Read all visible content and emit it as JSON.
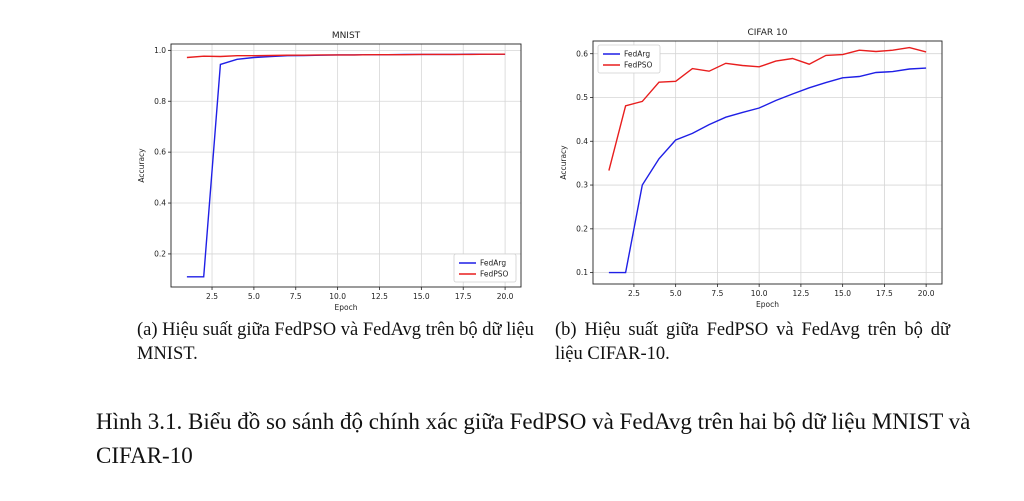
{
  "figure_caption": "Hình 3.1. Biểu đồ so sánh độ chính xác giữa FedPSO và FedAvg trên hai bộ dữ liệu MNIST và CIFAR-10",
  "subcaptions": {
    "a": "(a) Hiệu suất giữa FedPSO và FedAvg trên bộ dữ liệu MNIST.",
    "b": "(b) Hiệu suất giữa FedPSO và FedAvg trên bộ dữ liệu CIFAR-10."
  },
  "colors": {
    "fedavg": "#1f1fe6",
    "fedpso": "#e81e1e",
    "grid": "#d6d6d6"
  },
  "chart_data": [
    {
      "type": "line",
      "title": "MNIST",
      "xlabel": "Epoch",
      "ylabel": "Accuracy",
      "xlim": [
        0.05,
        20.95
      ],
      "ylim": [
        0.07,
        1.025
      ],
      "xticks": [
        2.5,
        5.0,
        7.5,
        10.0,
        12.5,
        15.0,
        17.5,
        20.0
      ],
      "xtick_labels": [
        "2.5",
        "5.0",
        "7.5",
        "10.0",
        "12.5",
        "15.0",
        "17.5",
        "20.0"
      ],
      "yticks": [
        0.2,
        0.4,
        0.6,
        0.8,
        1.0
      ],
      "ytick_labels": [
        "0.2",
        "0.4",
        "0.6",
        "0.8",
        "1.0"
      ],
      "grid": true,
      "legend_position": "lower-right",
      "x": [
        1,
        2,
        3,
        4,
        5,
        6,
        7,
        8,
        9,
        10,
        11,
        12,
        13,
        14,
        15,
        16,
        17,
        18,
        19,
        20
      ],
      "series": [
        {
          "name": "FedArg",
          "color_key": "fedavg",
          "values": [
            0.11,
            0.11,
            0.945,
            0.965,
            0.972,
            0.976,
            0.979,
            0.98,
            0.981,
            0.982,
            0.982,
            0.983,
            0.983,
            0.984,
            0.984,
            0.984,
            0.984,
            0.985,
            0.985,
            0.985
          ]
        },
        {
          "name": "FedPSO",
          "color_key": "fedpso",
          "values": [
            0.972,
            0.977,
            0.976,
            0.979,
            0.979,
            0.98,
            0.981,
            0.981,
            0.982,
            0.982,
            0.982,
            0.983,
            0.983,
            0.983,
            0.984,
            0.984,
            0.984,
            0.984,
            0.985,
            0.985
          ]
        }
      ]
    },
    {
      "type": "line",
      "title": "CIFAR 10",
      "xlabel": "Epoch",
      "ylabel": "Accuracy",
      "xlim": [
        0.05,
        20.95
      ],
      "ylim": [
        0.074,
        0.629
      ],
      "xticks": [
        2.5,
        5.0,
        7.5,
        10.0,
        12.5,
        15.0,
        17.5,
        20.0
      ],
      "xtick_labels": [
        "2.5",
        "5.0",
        "7.5",
        "10.0",
        "12.5",
        "15.0",
        "17.5",
        "20.0"
      ],
      "yticks": [
        0.1,
        0.2,
        0.3,
        0.4,
        0.5,
        0.6
      ],
      "ytick_labels": [
        "0.1",
        "0.2",
        "0.3",
        "0.4",
        "0.5",
        "0.6"
      ],
      "grid": true,
      "legend_position": "upper-left",
      "x": [
        1,
        2,
        3,
        4,
        5,
        6,
        7,
        8,
        9,
        10,
        11,
        12,
        13,
        14,
        15,
        16,
        17,
        18,
        19,
        20
      ],
      "series": [
        {
          "name": "FedArg",
          "color_key": "fedavg",
          "values": [
            0.1,
            0.1,
            0.3,
            0.36,
            0.403,
            0.418,
            0.438,
            0.455,
            0.466,
            0.476,
            0.493,
            0.508,
            0.522,
            0.534,
            0.545,
            0.548,
            0.557,
            0.559,
            0.565,
            0.567
          ]
        },
        {
          "name": "FedPSO",
          "color_key": "fedpso",
          "values": [
            0.333,
            0.481,
            0.491,
            0.535,
            0.537,
            0.566,
            0.56,
            0.578,
            0.573,
            0.57,
            0.583,
            0.589,
            0.576,
            0.596,
            0.598,
            0.608,
            0.605,
            0.608,
            0.614,
            0.604
          ]
        }
      ]
    }
  ]
}
